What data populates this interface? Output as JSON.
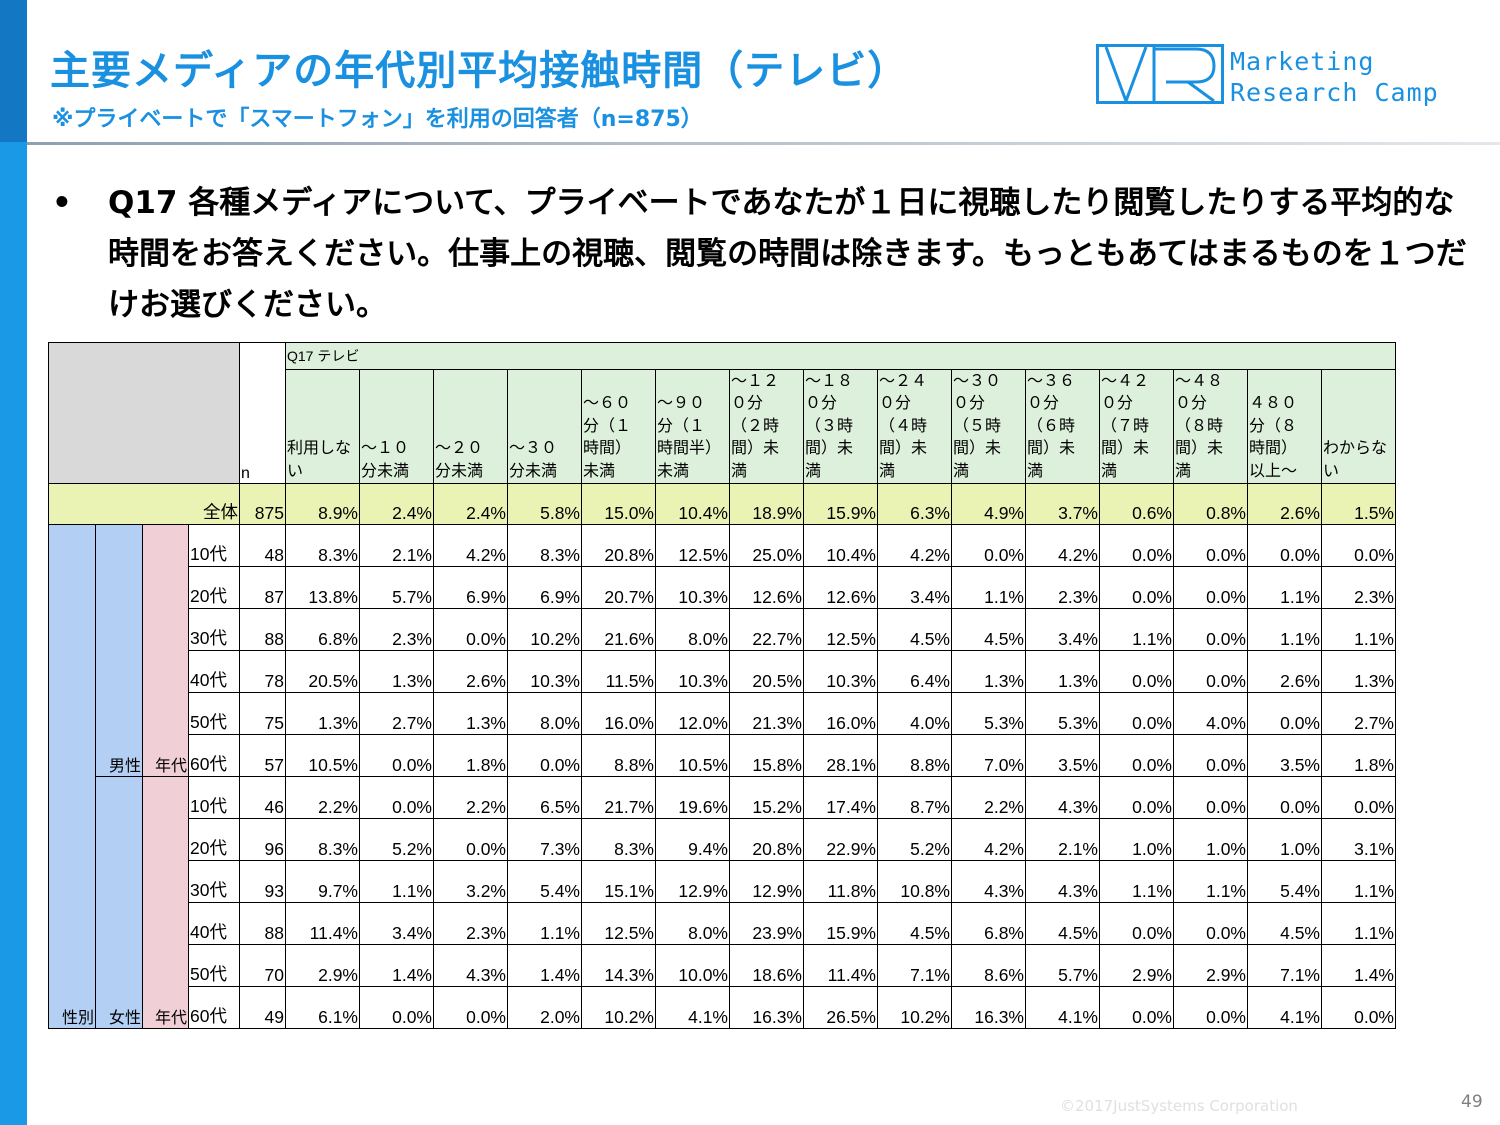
{
  "title": "主要メディアの年代別平均接触時間（テレビ）",
  "subtitle": "※プライベートで「スマートフォン」を利用の回答者（n=875）",
  "logo": {
    "line1": "Marketing",
    "line2": "Research Camp"
  },
  "question": {
    "bullet": "•",
    "text": "Q17 各種メディアについて、プライベートであなたが１日に視聴したり閲覧したりする平均的な時間をお答えください。仕事上の視聴、閲覧の時間は除きます。もっともあてはまるものを１つだけお選びください。"
  },
  "table": {
    "question_label": "Q17 テレビ",
    "n_label": "n",
    "columns": [
      "利用しない",
      "～１０\n分未満",
      "～２０\n分未満",
      "～３０\n分未満",
      "～６０\n分（１\n時間）\n未満",
      "～９０\n分（１\n時間半）\n未満",
      "～１２\n０分\n（２時\n間）未\n満",
      "～１８\n０分\n（３時\n間）未\n満",
      "～２４\n０分\n（４時\n間）未\n満",
      "～３０\n０分\n（５時\n間）未\n満",
      "～３６\n０分\n（６時\n間）未\n満",
      "～４２\n０分\n（７時\n間）未\n満",
      "～４８\n０分\n（８時\n間）未\n満",
      "４８０\n分（８\n時間）\n以上～",
      "わからな\nい"
    ],
    "total": {
      "label": "全体",
      "n": "875",
      "values": [
        "8.9%",
        "2.4%",
        "2.4%",
        "5.8%",
        "15.0%",
        "10.4%",
        "18.9%",
        "15.9%",
        "6.3%",
        "4.9%",
        "3.7%",
        "0.6%",
        "0.8%",
        "2.6%",
        "1.5%"
      ]
    },
    "gender_label": "性別",
    "age_group_label": "年代",
    "groups": [
      {
        "gender": "男性",
        "rows": [
          {
            "age": "10代",
            "n": "48",
            "values": [
              "8.3%",
              "2.1%",
              "4.2%",
              "8.3%",
              "20.8%",
              "12.5%",
              "25.0%",
              "10.4%",
              "4.2%",
              "0.0%",
              "4.2%",
              "0.0%",
              "0.0%",
              "0.0%",
              "0.0%"
            ]
          },
          {
            "age": "20代",
            "n": "87",
            "values": [
              "13.8%",
              "5.7%",
              "6.9%",
              "6.9%",
              "20.7%",
              "10.3%",
              "12.6%",
              "12.6%",
              "3.4%",
              "1.1%",
              "2.3%",
              "0.0%",
              "0.0%",
              "1.1%",
              "2.3%"
            ]
          },
          {
            "age": "30代",
            "n": "88",
            "values": [
              "6.8%",
              "2.3%",
              "0.0%",
              "10.2%",
              "21.6%",
              "8.0%",
              "22.7%",
              "12.5%",
              "4.5%",
              "4.5%",
              "3.4%",
              "1.1%",
              "0.0%",
              "1.1%",
              "1.1%"
            ]
          },
          {
            "age": "40代",
            "n": "78",
            "values": [
              "20.5%",
              "1.3%",
              "2.6%",
              "10.3%",
              "11.5%",
              "10.3%",
              "20.5%",
              "10.3%",
              "6.4%",
              "1.3%",
              "1.3%",
              "0.0%",
              "0.0%",
              "2.6%",
              "1.3%"
            ]
          },
          {
            "age": "50代",
            "n": "75",
            "values": [
              "1.3%",
              "2.7%",
              "1.3%",
              "8.0%",
              "16.0%",
              "12.0%",
              "21.3%",
              "16.0%",
              "4.0%",
              "5.3%",
              "5.3%",
              "0.0%",
              "4.0%",
              "0.0%",
              "2.7%"
            ]
          },
          {
            "age": "60代",
            "n": "57",
            "values": [
              "10.5%",
              "0.0%",
              "1.8%",
              "0.0%",
              "8.8%",
              "10.5%",
              "15.8%",
              "28.1%",
              "8.8%",
              "7.0%",
              "3.5%",
              "0.0%",
              "0.0%",
              "3.5%",
              "1.8%"
            ]
          }
        ]
      },
      {
        "gender": "女性",
        "rows": [
          {
            "age": "10代",
            "n": "46",
            "values": [
              "2.2%",
              "0.0%",
              "2.2%",
              "6.5%",
              "21.7%",
              "19.6%",
              "15.2%",
              "17.4%",
              "8.7%",
              "2.2%",
              "4.3%",
              "0.0%",
              "0.0%",
              "0.0%",
              "0.0%"
            ]
          },
          {
            "age": "20代",
            "n": "96",
            "values": [
              "8.3%",
              "5.2%",
              "0.0%",
              "7.3%",
              "8.3%",
              "9.4%",
              "20.8%",
              "22.9%",
              "5.2%",
              "4.2%",
              "2.1%",
              "1.0%",
              "1.0%",
              "1.0%",
              "3.1%"
            ]
          },
          {
            "age": "30代",
            "n": "93",
            "values": [
              "9.7%",
              "1.1%",
              "3.2%",
              "5.4%",
              "15.1%",
              "12.9%",
              "12.9%",
              "11.8%",
              "10.8%",
              "4.3%",
              "4.3%",
              "1.1%",
              "1.1%",
              "5.4%",
              "1.1%"
            ]
          },
          {
            "age": "40代",
            "n": "88",
            "values": [
              "11.4%",
              "3.4%",
              "2.3%",
              "1.1%",
              "12.5%",
              "8.0%",
              "23.9%",
              "15.9%",
              "4.5%",
              "6.8%",
              "4.5%",
              "0.0%",
              "0.0%",
              "4.5%",
              "1.1%"
            ]
          },
          {
            "age": "50代",
            "n": "70",
            "values": [
              "2.9%",
              "1.4%",
              "4.3%",
              "1.4%",
              "14.3%",
              "10.0%",
              "18.6%",
              "11.4%",
              "7.1%",
              "8.6%",
              "5.7%",
              "2.9%",
              "2.9%",
              "7.1%",
              "1.4%"
            ]
          },
          {
            "age": "60代",
            "n": "49",
            "values": [
              "6.1%",
              "0.0%",
              "0.0%",
              "2.0%",
              "10.2%",
              "4.1%",
              "16.3%",
              "26.5%",
              "10.2%",
              "16.3%",
              "4.1%",
              "0.0%",
              "0.0%",
              "4.1%",
              "0.0%"
            ]
          }
        ]
      }
    ]
  },
  "footer": {
    "copyright": "©2017JustSystems Corporation",
    "page": "49"
  },
  "colors": {
    "brand_blue": "#1a90e0",
    "header_green": "#ddf0dc",
    "total_yellow": "#eaf3b4",
    "gender_blue": "#b3cff4",
    "age_pink": "#f0cfd6"
  }
}
